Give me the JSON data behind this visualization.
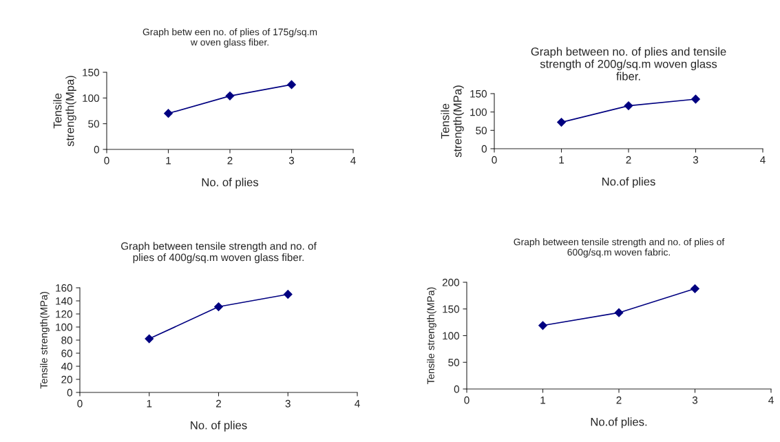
{
  "chart_data": [
    {
      "type": "line",
      "title": "Graph betw een no. of plies of 175g/sq.m\nw oven glass fiber.",
      "xlabel": "No. of plies",
      "ylabel": "Tensile\nstrength(Mpa)",
      "x": [
        1,
        2,
        3
      ],
      "series": [
        {
          "color": "#000080",
          "values": [
            70,
            104,
            126
          ]
        }
      ],
      "xlim": [
        0,
        4
      ],
      "xticks": [
        0,
        1,
        2,
        3,
        4
      ],
      "ylim": [
        0,
        150
      ],
      "yticks": [
        0,
        50,
        100,
        150
      ],
      "marker": "diamond",
      "line_style": "solid",
      "grid": false,
      "legend": false
    },
    {
      "type": "line",
      "title": "Graph between no. of plies and tensile\nstrength of 200g/sq.m woven glass\nfiber.",
      "xlabel": "No.of plies",
      "ylabel": "Tensile\nstrength(MPa)",
      "x": [
        1,
        2,
        3
      ],
      "series": [
        {
          "color": "#000080",
          "values": [
            72,
            117,
            135
          ]
        }
      ],
      "xlim": [
        0,
        4
      ],
      "xticks": [
        0,
        1,
        2,
        3,
        4
      ],
      "ylim": [
        0,
        150
      ],
      "yticks": [
        0,
        50,
        100,
        150
      ],
      "marker": "diamond",
      "line_style": "solid",
      "grid": false,
      "legend": false
    },
    {
      "type": "line",
      "title": "Graph between tensile strength and no. of\nplies of 400g/sq.m woven glass fiber.",
      "xlabel": "No. of plies",
      "ylabel": "Tensile strength(MPa)",
      "x": [
        1,
        2,
        3
      ],
      "series": [
        {
          "color": "#000080",
          "values": [
            82,
            131,
            150
          ]
        }
      ],
      "xlim": [
        0,
        4
      ],
      "xticks": [
        0,
        1,
        2,
        3,
        4
      ],
      "ylim": [
        0,
        160
      ],
      "yticks": [
        0,
        20,
        40,
        60,
        80,
        100,
        120,
        140,
        160
      ],
      "marker": "diamond",
      "line_style": "solid",
      "grid": false,
      "legend": false
    },
    {
      "type": "line",
      "title": "Graph between tensile strength and no. of plies of\n600g/sq.m woven fabric.",
      "xlabel": "No.of plies.",
      "ylabel": "Tensile strength(MPa)",
      "x": [
        1,
        2,
        3
      ],
      "series": [
        {
          "color": "#000080",
          "values": [
            119,
            143,
            188
          ]
        }
      ],
      "xlim": [
        0,
        4
      ],
      "xticks": [
        0,
        1,
        2,
        3,
        4
      ],
      "ylim": [
        0,
        200
      ],
      "yticks": [
        0,
        50,
        100,
        150,
        200
      ],
      "marker": "diamond",
      "line_style": "solid",
      "grid": false,
      "legend": false
    }
  ]
}
